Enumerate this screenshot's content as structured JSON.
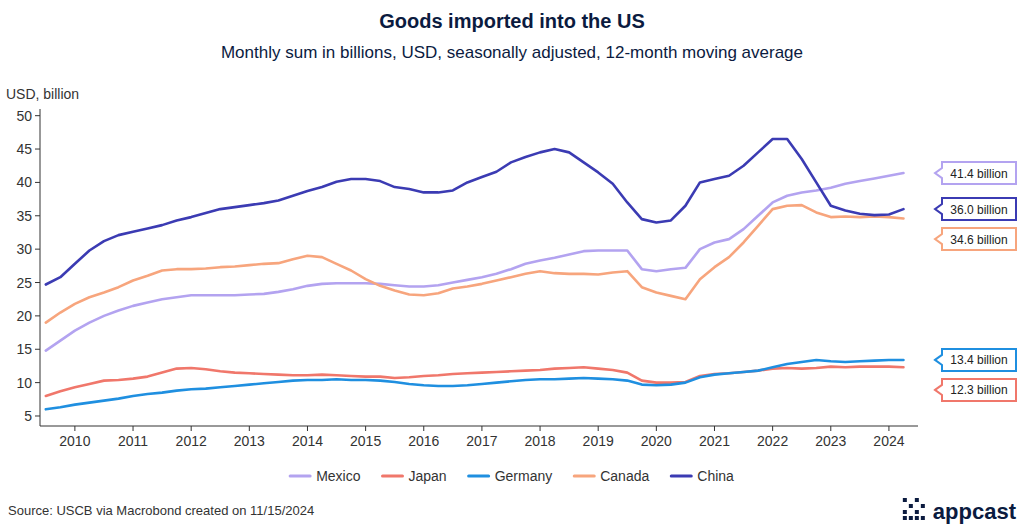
{
  "chart_data": {
    "type": "line",
    "title": "Goods imported into the US",
    "subtitle": "Monthly sum in billions, USD, seasonally adjusted, 12-month moving average",
    "y_label": "USD, billion",
    "source": "Source: USCB via Macrobond created on 11/15/2024",
    "brand": "appcast",
    "legend": "bottom",
    "grid": false,
    "xlim": [
      2009.9,
      2025.0
    ],
    "ylim": [
      3.5,
      51
    ],
    "yticks": [
      5,
      10,
      15,
      20,
      25,
      30,
      35,
      40,
      45,
      50
    ],
    "xticks": [
      {
        "value": 2010.5,
        "label": "2010"
      },
      {
        "value": 2011.5,
        "label": "2011"
      },
      {
        "value": 2012.5,
        "label": "2012"
      },
      {
        "value": 2013.5,
        "label": "2013"
      },
      {
        "value": 2014.5,
        "label": "2014"
      },
      {
        "value": 2015.5,
        "label": "2015"
      },
      {
        "value": 2016.5,
        "label": "2016"
      },
      {
        "value": 2017.5,
        "label": "2017"
      },
      {
        "value": 2018.5,
        "label": "2018"
      },
      {
        "value": 2019.5,
        "label": "2019"
      },
      {
        "value": 2020.5,
        "label": "2020"
      },
      {
        "value": 2021.5,
        "label": "2021"
      },
      {
        "value": 2022.5,
        "label": "2022"
      },
      {
        "value": 2023.5,
        "label": "2023"
      },
      {
        "value": 2024.5,
        "label": "2024"
      }
    ],
    "x": [
      2010.0,
      2010.25,
      2010.5,
      2010.75,
      2011.0,
      2011.25,
      2011.5,
      2011.75,
      2012.0,
      2012.25,
      2012.5,
      2012.75,
      2013.0,
      2013.25,
      2013.5,
      2013.75,
      2014.0,
      2014.25,
      2014.5,
      2014.75,
      2015.0,
      2015.25,
      2015.5,
      2015.75,
      2016.0,
      2016.25,
      2016.5,
      2016.75,
      2017.0,
      2017.25,
      2017.5,
      2017.75,
      2018.0,
      2018.25,
      2018.5,
      2018.75,
      2019.0,
      2019.25,
      2019.5,
      2019.75,
      2020.0,
      2020.25,
      2020.5,
      2020.75,
      2021.0,
      2021.25,
      2021.5,
      2021.75,
      2022.0,
      2022.25,
      2022.5,
      2022.75,
      2023.0,
      2023.25,
      2023.5,
      2023.75,
      2024.0,
      2024.25,
      2024.5,
      2024.75
    ],
    "series": [
      {
        "name": "Mexico",
        "color": "#b3a3f0",
        "values": [
          14.8,
          16.3,
          17.8,
          19.0,
          20.0,
          20.8,
          21.5,
          22.0,
          22.5,
          22.8,
          23.1,
          23.1,
          23.1,
          23.1,
          23.2,
          23.3,
          23.6,
          24.0,
          24.5,
          24.8,
          24.9,
          24.9,
          24.9,
          24.8,
          24.6,
          24.4,
          24.4,
          24.6,
          25.0,
          25.4,
          25.8,
          26.3,
          27.0,
          27.8,
          28.3,
          28.7,
          29.2,
          29.7,
          29.8,
          29.8,
          29.8,
          27.0,
          26.7,
          27.0,
          27.2,
          30.0,
          31.0,
          31.5,
          33.0,
          35.0,
          37.0,
          38.0,
          38.5,
          38.8,
          39.2,
          39.8,
          40.2,
          40.6,
          41.0,
          41.4
        ]
      },
      {
        "name": "Japan",
        "color": "#f0776b",
        "values": [
          8.0,
          8.7,
          9.3,
          9.8,
          10.3,
          10.4,
          10.6,
          10.9,
          11.5,
          12.1,
          12.2,
          12.0,
          11.7,
          11.5,
          11.4,
          11.3,
          11.2,
          11.1,
          11.1,
          11.2,
          11.1,
          11.0,
          10.9,
          10.9,
          10.7,
          10.8,
          11.0,
          11.1,
          11.3,
          11.4,
          11.5,
          11.6,
          11.7,
          11.8,
          11.9,
          12.1,
          12.2,
          12.3,
          12.1,
          11.9,
          11.5,
          10.3,
          10.0,
          10.0,
          10.1,
          11.0,
          11.3,
          11.4,
          11.6,
          11.8,
          12.1,
          12.2,
          12.1,
          12.2,
          12.4,
          12.3,
          12.4,
          12.4,
          12.4,
          12.3
        ]
      },
      {
        "name": "Germany",
        "color": "#1f8fe0",
        "values": [
          6.0,
          6.3,
          6.7,
          7.0,
          7.3,
          7.6,
          8.0,
          8.3,
          8.5,
          8.8,
          9.0,
          9.1,
          9.3,
          9.5,
          9.7,
          9.9,
          10.1,
          10.3,
          10.4,
          10.4,
          10.5,
          10.4,
          10.4,
          10.3,
          10.1,
          9.8,
          9.6,
          9.5,
          9.5,
          9.6,
          9.8,
          10.0,
          10.2,
          10.4,
          10.5,
          10.5,
          10.6,
          10.7,
          10.6,
          10.5,
          10.3,
          9.7,
          9.6,
          9.7,
          10.0,
          10.8,
          11.2,
          11.4,
          11.6,
          11.8,
          12.3,
          12.8,
          13.1,
          13.4,
          13.2,
          13.1,
          13.2,
          13.3,
          13.4,
          13.4
        ]
      },
      {
        "name": "Canada",
        "color": "#f7a57d",
        "values": [
          19.0,
          20.5,
          21.8,
          22.8,
          23.5,
          24.3,
          25.3,
          26.0,
          26.8,
          27.0,
          27.0,
          27.1,
          27.3,
          27.4,
          27.6,
          27.8,
          27.9,
          28.5,
          29.0,
          28.8,
          27.8,
          26.8,
          25.5,
          24.5,
          23.8,
          23.2,
          23.1,
          23.4,
          24.1,
          24.4,
          24.8,
          25.3,
          25.8,
          26.3,
          26.7,
          26.4,
          26.3,
          26.3,
          26.2,
          26.5,
          26.7,
          24.3,
          23.5,
          23.0,
          22.5,
          25.5,
          27.3,
          28.8,
          31.0,
          33.5,
          36.0,
          36.5,
          36.6,
          35.5,
          34.8,
          34.9,
          34.8,
          34.9,
          34.8,
          34.6
        ]
      },
      {
        "name": "China",
        "color": "#3b3bb3",
        "values": [
          24.7,
          25.8,
          27.8,
          29.8,
          31.2,
          32.1,
          32.6,
          33.1,
          33.6,
          34.3,
          34.8,
          35.4,
          36.0,
          36.3,
          36.6,
          36.9,
          37.3,
          38.0,
          38.7,
          39.3,
          40.1,
          40.5,
          40.5,
          40.2,
          39.3,
          39.0,
          38.5,
          38.5,
          38.8,
          40.0,
          40.8,
          41.6,
          43.0,
          43.8,
          44.5,
          45.0,
          44.5,
          43.0,
          41.5,
          39.8,
          37.0,
          34.5,
          34.0,
          34.3,
          36.5,
          40.0,
          40.5,
          41.0,
          42.5,
          44.5,
          46.5,
          46.5,
          43.5,
          40.0,
          36.5,
          35.8,
          35.3,
          35.1,
          35.2,
          36.0
        ]
      }
    ],
    "annotations": [
      "41.4 billion",
      "12.3 billion",
      "13.4 billion",
      "34.6 billion",
      "36.0 billion"
    ]
  }
}
